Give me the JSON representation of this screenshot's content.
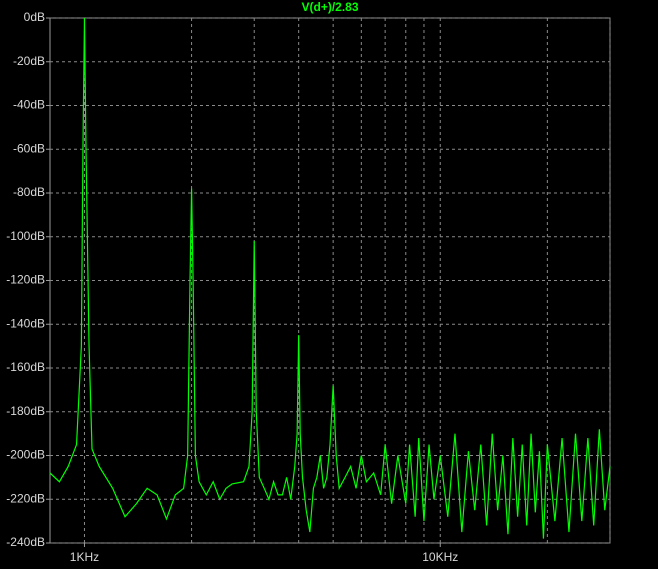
{
  "chart_data": {
    "type": "line",
    "x": [
      800,
      850,
      900,
      950,
      980,
      990,
      1000,
      1010,
      1030,
      1050,
      1100,
      1200,
      1300,
      1400,
      1500,
      1600,
      1700,
      1800,
      1900,
      1950,
      1980,
      2000,
      2020,
      2050,
      2100,
      2200,
      2300,
      2400,
      2500,
      2600,
      2800,
      2900,
      2960,
      3000,
      3040,
      3100,
      3200,
      3300,
      3400,
      3500,
      3600,
      3700,
      3800,
      3900,
      3960,
      4000,
      4040,
      4100,
      4200,
      4300,
      4400,
      4500,
      4600,
      4700,
      4800,
      4900,
      5000,
      5100,
      5200,
      5400,
      5600,
      5800,
      6000,
      6200,
      6500,
      6800,
      7000,
      7300,
      7600,
      8000,
      8200,
      8500,
      8700,
      9000,
      9300,
      9600,
      10000,
      10500,
      11000,
      11500,
      12000,
      12500,
      13000,
      13500,
      14000,
      14500,
      15000,
      15500,
      16000,
      16500,
      17000,
      17500,
      18000,
      18500,
      19000,
      19500,
      20000,
      21000,
      22000,
      23000,
      24000,
      25000,
      26000,
      27000,
      28000,
      29000,
      30000
    ],
    "series": [
      {
        "name": "V(d+)/2.83",
        "color": "#00ff00",
        "values": [
          -208,
          -212,
          -205,
          -195,
          -150,
          -60,
          0,
          -60,
          -150,
          -197,
          -205,
          -215,
          -228,
          -222,
          -215,
          -218,
          -229,
          -218,
          -215,
          -200,
          -120,
          -78,
          -120,
          -200,
          -212,
          -218,
          -212,
          -220,
          -215,
          -213,
          -212,
          -205,
          -180,
          -102,
          -180,
          -210,
          -215,
          -220,
          -212,
          -218,
          -218,
          -210,
          -220,
          -205,
          -190,
          -145,
          -190,
          -210,
          -225,
          -235,
          -215,
          -210,
          -200,
          -215,
          -210,
          -195,
          -168,
          -200,
          -215,
          -210,
          -205,
          -215,
          -200,
          -212,
          -208,
          -218,
          -195,
          -222,
          -200,
          -222,
          -195,
          -228,
          -192,
          -230,
          -195,
          -220,
          -200,
          -228,
          -190,
          -235,
          -198,
          -225,
          -195,
          -232,
          -190,
          -225,
          -200,
          -236,
          -192,
          -228,
          -195,
          -232,
          -190,
          -226,
          -198,
          -238,
          -195,
          -230,
          -192,
          -235,
          -190,
          -230,
          -192,
          -232,
          -188,
          -225,
          -205
        ]
      }
    ],
    "xlog": true,
    "xlim": [
      800,
      30000
    ],
    "xticks": [
      {
        "value": 1000,
        "label": "1KHz"
      },
      {
        "value": 10000,
        "label": "10KHz"
      }
    ],
    "xgrid_minor": [
      2000,
      3000,
      4000,
      5000,
      6000,
      7000,
      8000,
      9000,
      20000,
      30000
    ],
    "ylim": [
      -240,
      0
    ],
    "yticks": [
      {
        "value": 0,
        "label": "0dB"
      },
      {
        "value": -20,
        "label": "-20dB"
      },
      {
        "value": -40,
        "label": "-40dB"
      },
      {
        "value": -60,
        "label": "-60dB"
      },
      {
        "value": -80,
        "label": "-80dB"
      },
      {
        "value": -100,
        "label": "-100dB"
      },
      {
        "value": -120,
        "label": "-120dB"
      },
      {
        "value": -140,
        "label": "-140dB"
      },
      {
        "value": -160,
        "label": "-160dB"
      },
      {
        "value": -180,
        "label": "-180dB"
      },
      {
        "value": -200,
        "label": "-200dB"
      },
      {
        "value": -220,
        "label": "-220dB"
      },
      {
        "value": -240,
        "label": "-240dB"
      }
    ],
    "grid": true
  }
}
